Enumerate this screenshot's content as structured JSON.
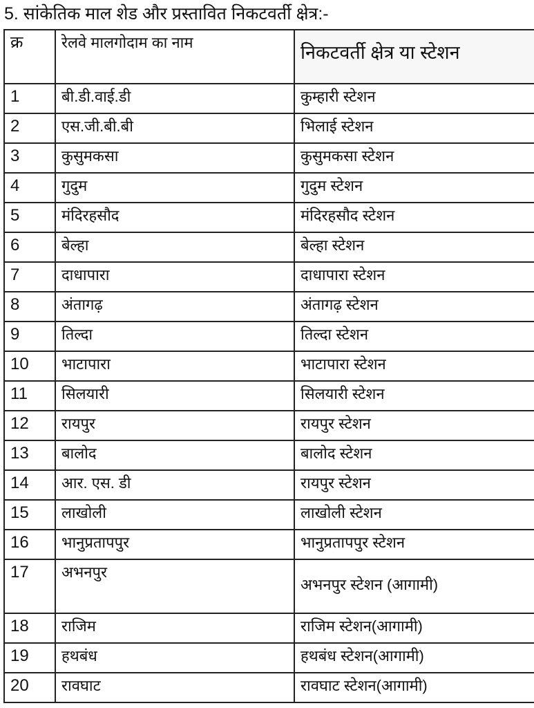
{
  "title": "5. सांकेतिक माल शेड और प्रस्तावित निकटवर्ती क्षेत्र:-",
  "table": {
    "headers": [
      "क्र",
      "रेलवे मालगोदाम का नाम",
      "निकटवर्ती क्षेत्र या स्टेशन"
    ],
    "rows": [
      [
        "1",
        "बी.डी.वाई.डी",
        "कुम्हारी स्टेशन"
      ],
      [
        "2",
        "एस.जी.बी.बी",
        "भिलाई स्टेशन"
      ],
      [
        "3",
        "कुसुमकसा",
        "कुसुमकसा स्टेशन"
      ],
      [
        "4",
        "गुदुम",
        "गुदुम स्टेशन"
      ],
      [
        "5",
        "मंदिरहसौद",
        "मंदिरहसौद स्टेशन"
      ],
      [
        "6",
        "बेल्हा",
        "बेल्हा स्टेशन"
      ],
      [
        "7",
        "दाधापारा",
        "दाधापारा स्टेशन"
      ],
      [
        "8",
        "अंतागढ़",
        "अंतागढ़ स्टेशन"
      ],
      [
        "9",
        "तिल्दा",
        "तिल्दा स्टेशन"
      ],
      [
        "10",
        "भाटापारा",
        "भाटापारा स्टेशन"
      ],
      [
        "11",
        "सिलयारी",
        "सिलयारी स्टेशन"
      ],
      [
        "12",
        "रायपुर",
        "रायपुर स्टेशन"
      ],
      [
        "13",
        "बालोद",
        "बालोद स्टेशन"
      ],
      [
        "14",
        "आर. एस. डी",
        "रायपुर स्टेशन"
      ],
      [
        "15",
        "लाखोली",
        "लाखोली स्टेशन"
      ],
      [
        "16",
        "भानुप्रतापपुर",
        "भानुप्रतापपुर स्टेशन"
      ],
      [
        "17",
        "अभनपुर",
        "अभनपुर स्टेशन (आगामी)"
      ],
      [
        "18",
        "राजिम",
        "राजिम स्टेशन(आगामी)"
      ],
      [
        "19",
        "हथबंध",
        "हथबंध स्टेशन(आगामी)"
      ],
      [
        "20",
        "रावघाट",
        "रावघाट स्टेशन(आगामी)"
      ]
    ]
  }
}
